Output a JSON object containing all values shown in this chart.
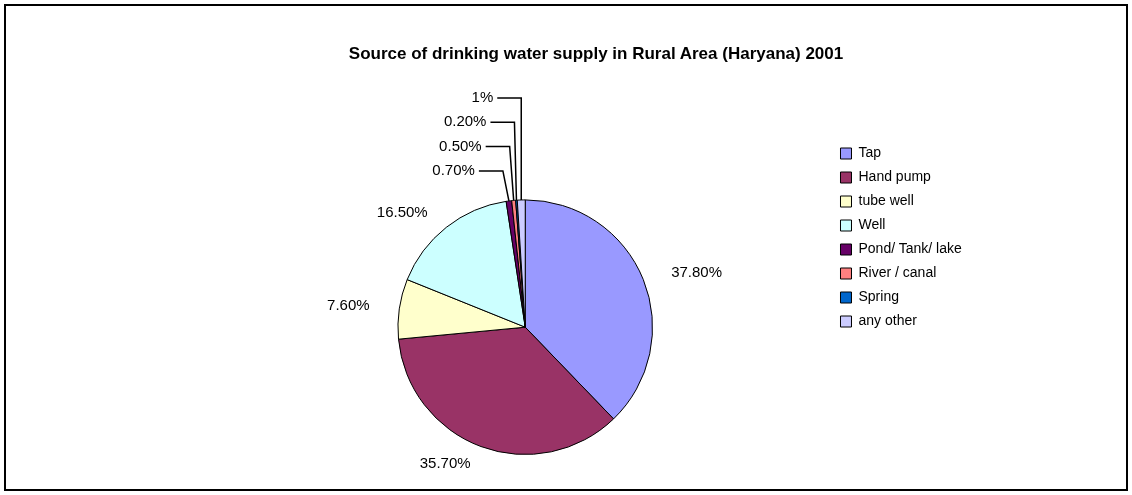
{
  "chart_data": {
    "type": "pie",
    "title": "Source of drinking water supply in Rural Area (Haryana) 2001",
    "categories": [
      "Tap",
      "Hand pump",
      "tube well",
      "Well",
      "Pond/ Tank/ lake",
      "River / canal",
      "Spring",
      "any other"
    ],
    "values": [
      37.8,
      35.7,
      7.6,
      16.5,
      0.7,
      0.5,
      0.2,
      1
    ],
    "colors": [
      "#9999ff",
      "#993366",
      "#ffffcc",
      "#ccffff",
      "#660066",
      "#ff8080",
      "#0066cc",
      "#ccccff"
    ],
    "value_labels": [
      "37.80%",
      "35.70%",
      "7.60%",
      "16.50%",
      "0.70%",
      "0.50%",
      "0.20%",
      "1%"
    ],
    "legend": "right"
  }
}
